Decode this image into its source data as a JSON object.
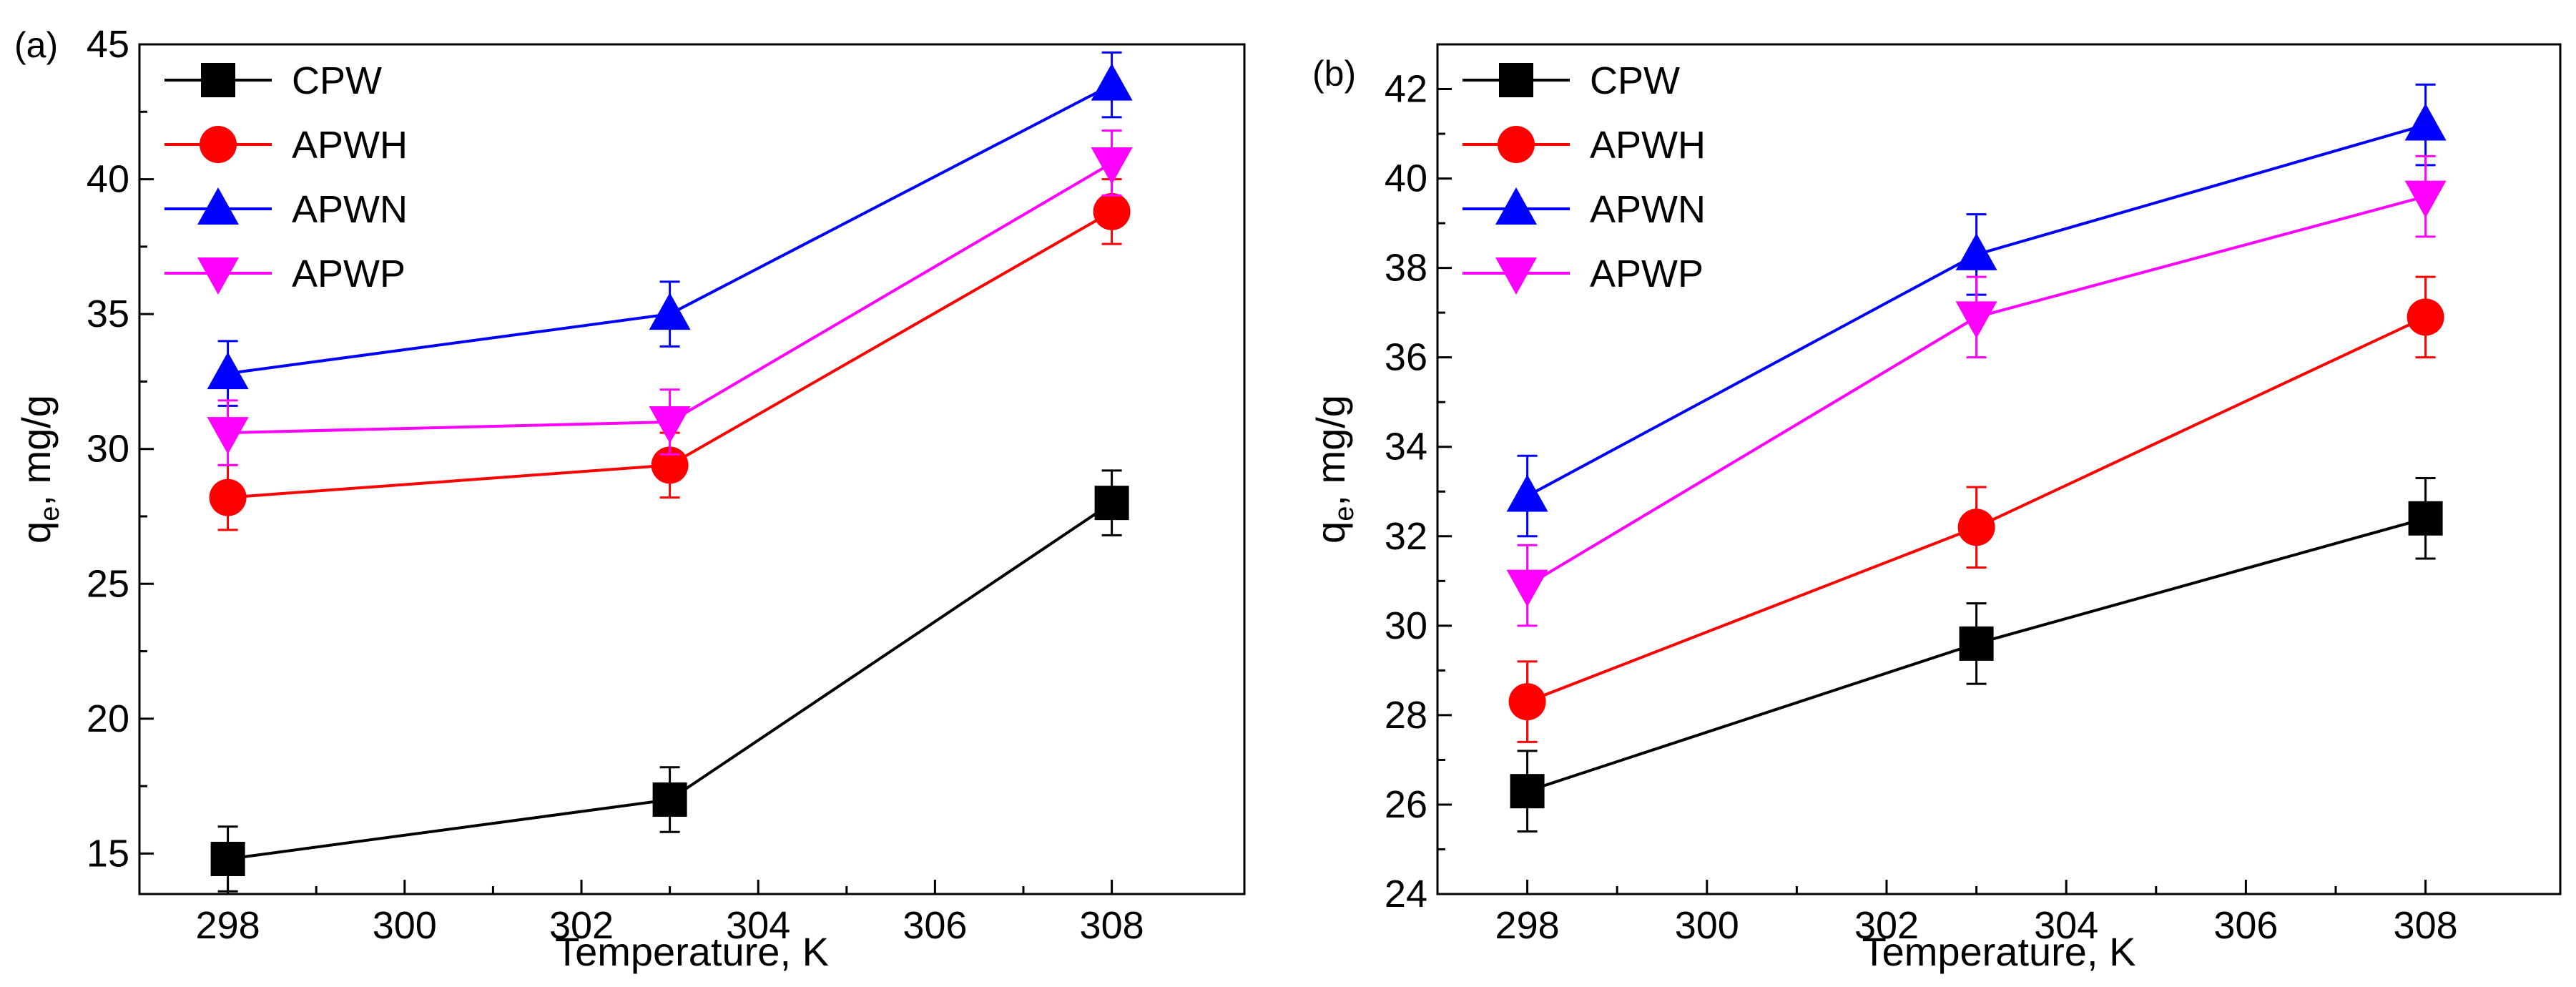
{
  "chart_data": [
    {
      "type": "line",
      "panel_label": "(a)",
      "xlabel": "Temperature, K",
      "ylabel_main": "q",
      "ylabel_sub": "e",
      "ylabel_rest": ", mg/g",
      "x": [
        298,
        303,
        308
      ],
      "xlim": [
        297,
        309.5
      ],
      "ylim": [
        13.5,
        45
      ],
      "xticks": [
        298,
        300,
        302,
        304,
        306,
        308
      ],
      "xtick_labels": [
        "298",
        "300",
        "302",
        "304",
        "306",
        "308"
      ],
      "yticks": [
        15,
        20,
        25,
        30,
        35,
        40,
        45
      ],
      "ytick_labels": [
        "15",
        "20",
        "25",
        "30",
        "35",
        "40",
        "45"
      ],
      "legend_position": "top-left",
      "series": [
        {
          "name": "CPW",
          "marker": "square",
          "color": "#000000",
          "values": [
            14.8,
            17.0,
            28.0
          ],
          "errors": [
            1.2,
            1.2,
            1.2
          ]
        },
        {
          "name": "APWH",
          "marker": "circle",
          "color": "#ff0000",
          "values": [
            28.2,
            29.4,
            38.8
          ],
          "errors": [
            1.2,
            1.2,
            1.2
          ]
        },
        {
          "name": "APWN",
          "marker": "triangle-up",
          "color": "#0000ff",
          "values": [
            32.8,
            35.0,
            43.5
          ],
          "errors": [
            1.2,
            1.2,
            1.2
          ]
        },
        {
          "name": "APWP",
          "marker": "triangle-down",
          "color": "#ff00ff",
          "values": [
            30.6,
            31.0,
            40.6
          ],
          "errors": [
            1.2,
            1.2,
            1.2
          ]
        }
      ]
    },
    {
      "type": "line",
      "panel_label": "(b)",
      "xlabel": "Temperature, K",
      "ylabel_main": "q",
      "ylabel_sub": "e",
      "ylabel_rest": ", mg/g",
      "x": [
        298,
        303,
        308
      ],
      "xlim": [
        297,
        309.5
      ],
      "ylim": [
        24,
        43
      ],
      "xticks": [
        298,
        300,
        302,
        304,
        306,
        308
      ],
      "xtick_labels": [
        "298",
        "300",
        "302",
        "304",
        "306",
        "308"
      ],
      "yticks": [
        24,
        26,
        28,
        30,
        32,
        34,
        36,
        38,
        40,
        42
      ],
      "ytick_labels": [
        "24",
        "26",
        "28",
        "30",
        "32",
        "34",
        "36",
        "38",
        "40",
        "42"
      ],
      "legend_position": "top-left",
      "series": [
        {
          "name": "CPW",
          "marker": "square",
          "color": "#000000",
          "values": [
            26.3,
            29.6,
            32.4
          ],
          "errors": [
            0.9,
            0.9,
            0.9
          ]
        },
        {
          "name": "APWH",
          "marker": "circle",
          "color": "#ff0000",
          "values": [
            28.3,
            32.2,
            36.9
          ],
          "errors": [
            0.9,
            0.9,
            0.9
          ]
        },
        {
          "name": "APWN",
          "marker": "triangle-up",
          "color": "#0000ff",
          "values": [
            32.9,
            38.3,
            41.2
          ],
          "errors": [
            0.9,
            0.9,
            0.9
          ]
        },
        {
          "name": "APWP",
          "marker": "triangle-down",
          "color": "#ff00ff",
          "values": [
            30.9,
            36.9,
            39.6
          ],
          "errors": [
            0.9,
            0.9,
            0.9
          ]
        }
      ]
    }
  ]
}
